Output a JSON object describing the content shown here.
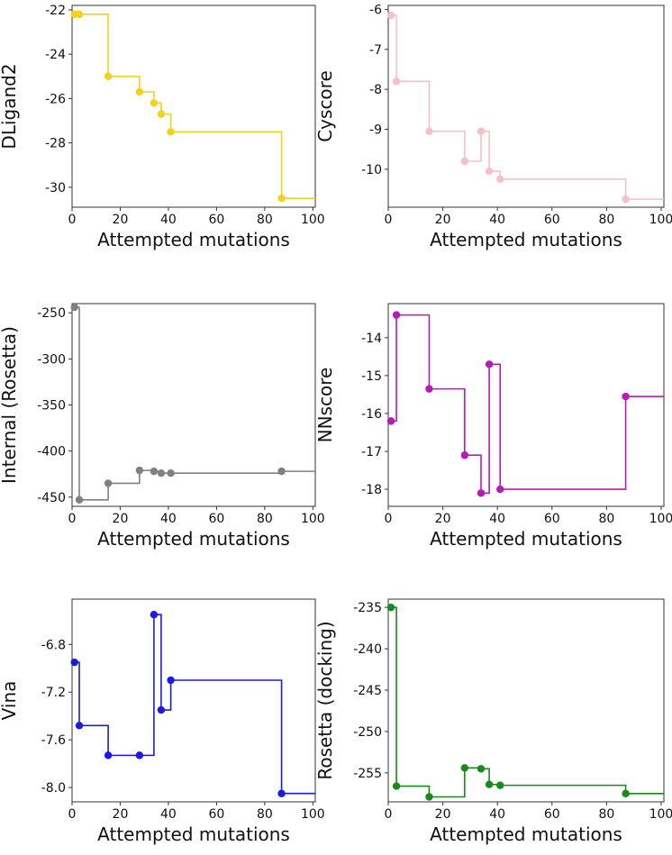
{
  "chart_data": [
    {
      "type": "line",
      "step": true,
      "title": "",
      "xlabel": "Attempted mutations",
      "ylabel": "DLigand2",
      "color": "#f2d31b",
      "xlim": [
        0,
        101
      ],
      "ylim": [
        -30.9,
        -21.8
      ],
      "xticks": [
        0,
        20,
        40,
        60,
        80,
        100
      ],
      "xtick_labels": [
        "0",
        "20",
        "40",
        "60",
        "80",
        "100"
      ],
      "yticks": [
        -22,
        -24,
        -26,
        -28,
        -30
      ],
      "ytick_labels": [
        "-22",
        "-24",
        "-26",
        "-28",
        "-30"
      ],
      "x": [
        1,
        3,
        15,
        28,
        34,
        37,
        41,
        87
      ],
      "values": [
        -22.2,
        -22.2,
        -25.0,
        -25.7,
        -26.2,
        -26.7,
        -27.5,
        -30.5
      ],
      "x_end": 101
    },
    {
      "type": "line",
      "step": true,
      "title": "",
      "xlabel": "Attempted mutations",
      "ylabel": "Cyscore",
      "color": "#f7c0c8",
      "xlim": [
        0,
        101
      ],
      "ylim": [
        -10.95,
        -5.9
      ],
      "xticks": [
        0,
        20,
        40,
        60,
        80,
        100
      ],
      "xtick_labels": [
        "0",
        "20",
        "40",
        "60",
        "80",
        "100"
      ],
      "yticks": [
        -6,
        -7,
        -8,
        -9,
        -10
      ],
      "ytick_labels": [
        "-6",
        "-7",
        "-8",
        "-9",
        "-10"
      ],
      "x": [
        1,
        3,
        15,
        28,
        34,
        37,
        41,
        87
      ],
      "values": [
        -6.15,
        -7.8,
        -9.05,
        -9.8,
        -9.05,
        -10.05,
        -10.25,
        -10.75
      ],
      "x_end": 101
    },
    {
      "type": "line",
      "step": true,
      "title": "",
      "xlabel": "Attempted mutations",
      "ylabel": "Internal (Rosetta)",
      "color": "#808080",
      "xlim": [
        0,
        101
      ],
      "ylim": [
        -460,
        -240
      ],
      "xticks": [
        0,
        20,
        40,
        60,
        80,
        100
      ],
      "xtick_labels": [
        "0",
        "20",
        "40",
        "60",
        "80",
        "100"
      ],
      "yticks": [
        -250,
        -300,
        -350,
        -400,
        -450
      ],
      "ytick_labels": [
        "-250",
        "-300",
        "-350",
        "-400",
        "-450"
      ],
      "x": [
        1,
        3,
        15,
        28,
        34,
        37,
        41,
        87
      ],
      "values": [
        -244,
        -453,
        -435,
        -421,
        -422,
        -424,
        -424,
        -422
      ],
      "x_end": 101
    },
    {
      "type": "line",
      "step": true,
      "title": "",
      "xlabel": "Attempted mutations",
      "ylabel": "NNscore",
      "color": "#b71ab7",
      "xlim": [
        0,
        101
      ],
      "ylim": [
        -18.45,
        -13.1
      ],
      "xticks": [
        0,
        20,
        40,
        60,
        80,
        100
      ],
      "xtick_labels": [
        "0",
        "20",
        "40",
        "60",
        "80",
        "100"
      ],
      "yticks": [
        -14,
        -15,
        -16,
        -17,
        -18
      ],
      "ytick_labels": [
        "-14",
        "-15",
        "-16",
        "-17",
        "-18"
      ],
      "x": [
        1,
        3,
        15,
        28,
        34,
        37,
        41,
        87
      ],
      "values": [
        -16.2,
        -13.4,
        -15.35,
        -17.1,
        -18.1,
        -14.7,
        -18.0,
        -15.55
      ],
      "x_end": 101
    },
    {
      "type": "line",
      "step": true,
      "title": "",
      "xlabel": "Attempted mutations",
      "ylabel": "Vina",
      "color": "#1b1be0",
      "xlim": [
        0,
        101
      ],
      "ylim": [
        -8.12,
        -6.42
      ],
      "xticks": [
        0,
        20,
        40,
        60,
        80,
        100
      ],
      "xtick_labels": [
        "0",
        "20",
        "40",
        "60",
        "80",
        "100"
      ],
      "yticks": [
        -6.8,
        -7.2,
        -7.6,
        -8.0
      ],
      "ytick_labels": [
        "-6.8",
        "-7.2",
        "-7.6",
        "-8.0"
      ],
      "x": [
        1,
        3,
        15,
        28,
        34,
        37,
        41,
        87
      ],
      "values": [
        -6.95,
        -7.48,
        -7.73,
        -7.73,
        -6.55,
        -7.35,
        -7.1,
        -8.05
      ],
      "x_end": 101
    },
    {
      "type": "line",
      "step": true,
      "title": "",
      "xlabel": "Attempted mutations",
      "ylabel": "Rosetta (docking)",
      "color": "#1a8a1a",
      "xlim": [
        0,
        101
      ],
      "ylim": [
        -258.5,
        -234
      ],
      "xticks": [
        0,
        20,
        40,
        60,
        80,
        100
      ],
      "xtick_labels": [
        "0",
        "20",
        "40",
        "60",
        "80",
        "100"
      ],
      "yticks": [
        -235,
        -240,
        -245,
        -250,
        -255
      ],
      "ytick_labels": [
        "-235",
        "-240",
        "-245",
        "-250",
        "-255"
      ],
      "x": [
        1,
        3,
        15,
        28,
        34,
        37,
        41,
        87
      ],
      "values": [
        -235,
        -256.6,
        -257.9,
        -254.4,
        -254.5,
        -256.4,
        -256.5,
        -257.5
      ],
      "x_end": 101
    }
  ]
}
